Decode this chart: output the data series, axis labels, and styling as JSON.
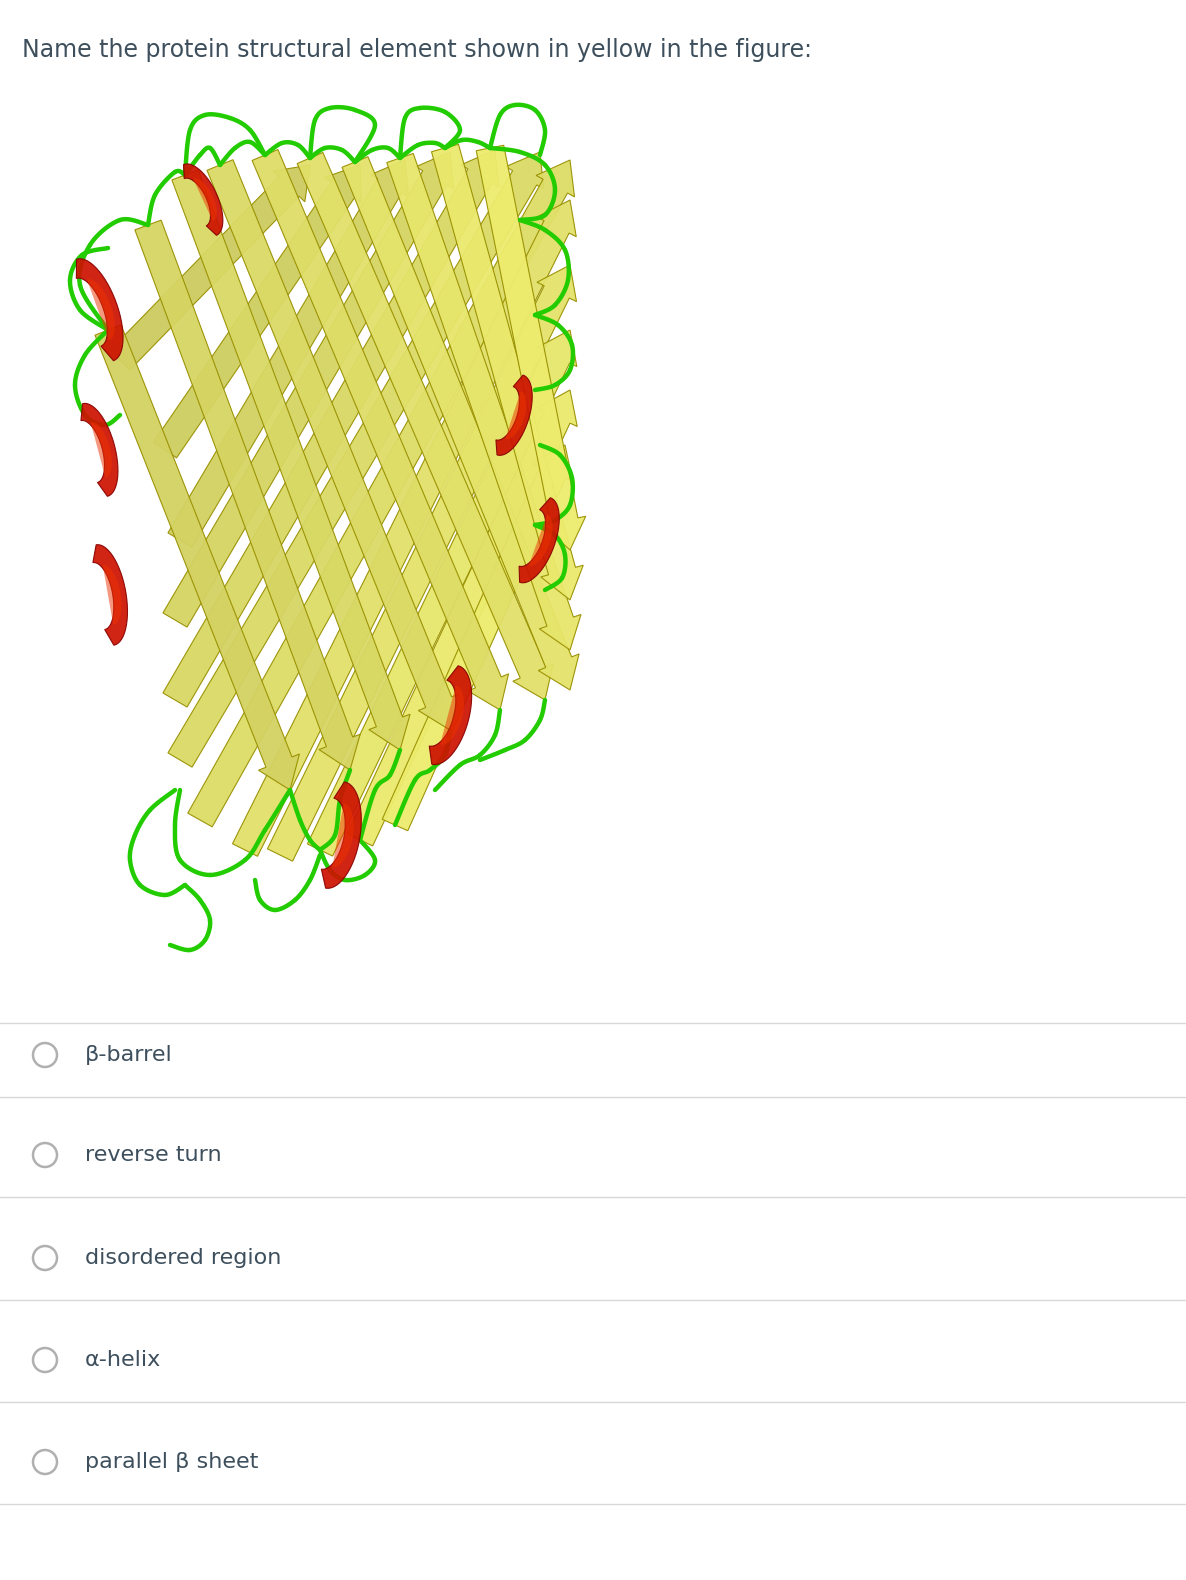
{
  "title": "Name the protein structural element shown in yellow in the figure:",
  "title_fontsize": 17,
  "title_color": "#3d4f5c",
  "bg_color": "#ffffff",
  "options": [
    "β-barrel",
    "reverse turn",
    "disordered region",
    "α-helix",
    "parallel β sheet"
  ],
  "option_fontsize": 16,
  "option_color": "#3d4f5c",
  "radio_color": "#b0b0b0",
  "divider_color": "#d8d8d8",
  "yellow_light": "#f0ef88",
  "yellow_mid": "#d8d020",
  "yellow_dark": "#b8b000",
  "yellow_edge": "#999000",
  "green": "#22cc00",
  "red_light": "#ff4422",
  "red_mid": "#cc1100",
  "red_dark": "#880000"
}
